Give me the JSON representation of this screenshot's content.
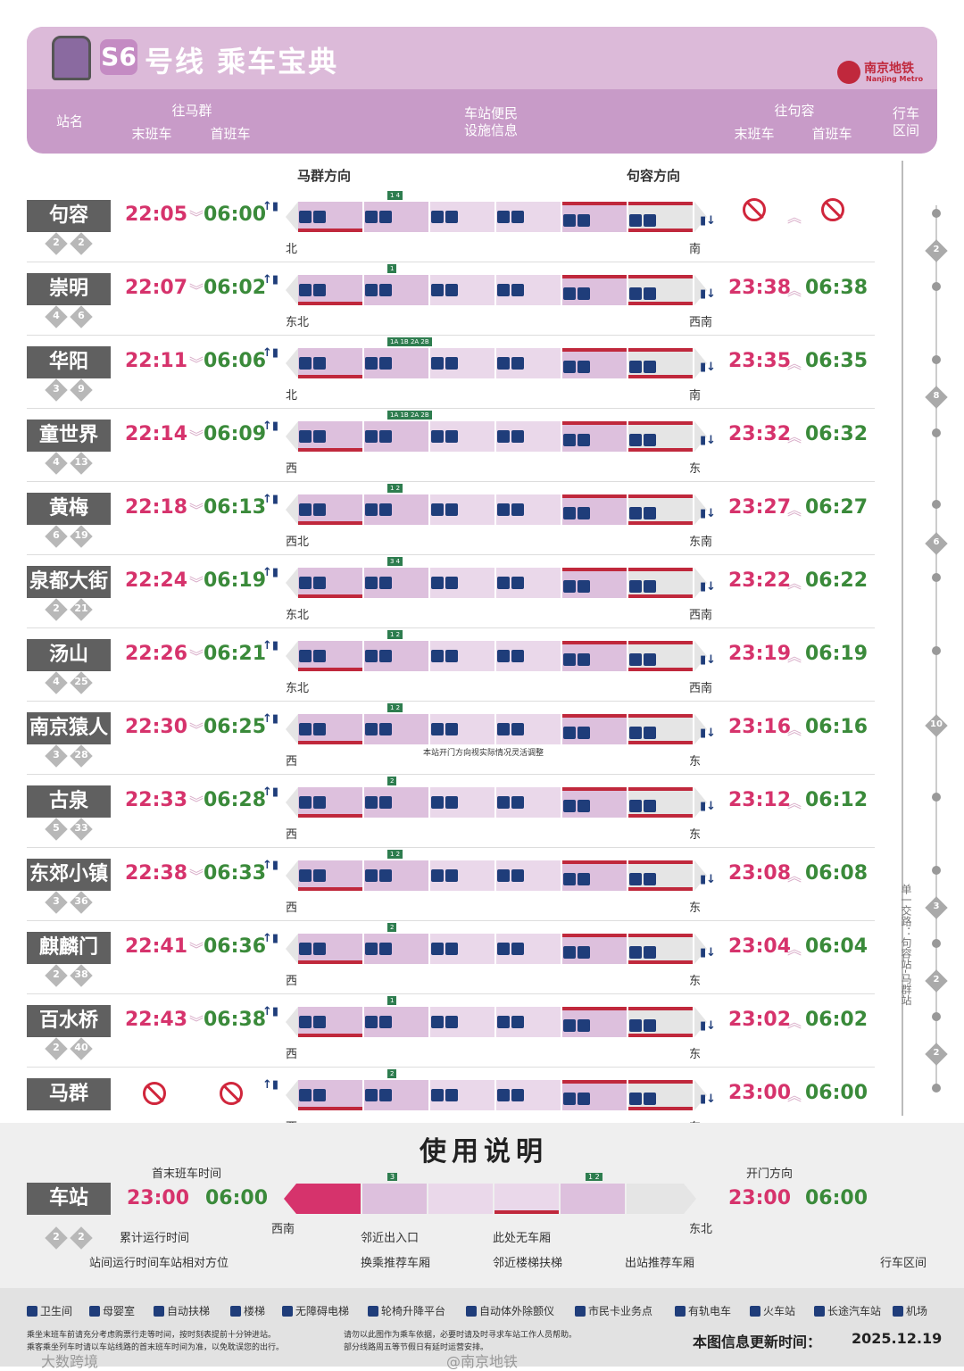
{
  "header": {
    "line": "S6",
    "title": "号线 乘车宝典",
    "logo_cn": "南京地铁",
    "logo_en": "Nanjing Metro",
    "col_station": "站名",
    "col_to_maqun": "往马群",
    "col_last": "末班车",
    "col_first": "首班车",
    "col_facilities_1": "车站便民",
    "col_facilities_2": "设施信息",
    "col_to_jurong": "往句容",
    "col_last_r": "末班车",
    "col_first_r": "首班车",
    "col_range_1": "行车",
    "col_range_2": "区间"
  },
  "directions": {
    "left": "马群方向",
    "right": "句容方向"
  },
  "stations": [
    {
      "name": "句容",
      "d1": "2",
      "d2": "2",
      "last": "22:05",
      "first": "06:00",
      "rlast": "",
      "rfirst": "",
      "dirL": "北",
      "dirR": "南",
      "forbidR": true,
      "exits": "1 4"
    },
    {
      "name": "崇明",
      "d1": "4",
      "d2": "6",
      "last": "22:07",
      "first": "06:02",
      "rlast": "23:38",
      "rfirst": "06:38",
      "dirL": "东北",
      "dirR": "西南",
      "exits": "1"
    },
    {
      "name": "华阳",
      "d1": "3",
      "d2": "9",
      "last": "22:11",
      "first": "06:06",
      "rlast": "23:35",
      "rfirst": "06:35",
      "dirL": "北",
      "dirR": "南",
      "exits": "1A 1B 2A 2B"
    },
    {
      "name": "童世界",
      "d1": "4",
      "d2": "13",
      "last": "22:14",
      "first": "06:09",
      "rlast": "23:32",
      "rfirst": "06:32",
      "dirL": "西",
      "dirR": "东",
      "exits": "1A 1B 2A 2B"
    },
    {
      "name": "黄梅",
      "d1": "6",
      "d2": "19",
      "last": "22:18",
      "first": "06:13",
      "rlast": "23:27",
      "rfirst": "06:27",
      "dirL": "西北",
      "dirR": "东南",
      "exits": "1 2"
    },
    {
      "name": "泉都大街",
      "d1": "2",
      "d2": "21",
      "last": "22:24",
      "first": "06:19",
      "rlast": "23:22",
      "rfirst": "06:22",
      "dirL": "东北",
      "dirR": "西南",
      "exits": "3 4"
    },
    {
      "name": "汤山",
      "d1": "4",
      "d2": "25",
      "last": "22:26",
      "first": "06:21",
      "rlast": "23:19",
      "rfirst": "06:19",
      "dirL": "东北",
      "dirR": "西南",
      "exits": "1 2"
    },
    {
      "name": "南京猿人洞",
      "d1": "3",
      "d2": "28",
      "last": "22:30",
      "first": "06:25",
      "rlast": "23:16",
      "rfirst": "06:16",
      "dirL": "西",
      "dirR": "东",
      "exits": "1 2",
      "note": "本站开门方向视实际情况灵活调整"
    },
    {
      "name": "古泉",
      "d1": "5",
      "d2": "33",
      "last": "22:33",
      "first": "06:28",
      "rlast": "23:12",
      "rfirst": "06:12",
      "dirL": "西",
      "dirR": "东",
      "exits": "2"
    },
    {
      "name": "东郊小镇",
      "d1": "3",
      "d2": "36",
      "last": "22:38",
      "first": "06:33",
      "rlast": "23:08",
      "rfirst": "06:08",
      "dirL": "西",
      "dirR": "东",
      "exits": "1 2"
    },
    {
      "name": "麒麟门",
      "d1": "2",
      "d2": "38",
      "last": "22:41",
      "first": "06:36",
      "rlast": "23:04",
      "rfirst": "06:04",
      "dirL": "西",
      "dirR": "东",
      "exits": "2"
    },
    {
      "name": "百水桥",
      "d1": "2",
      "d2": "40",
      "last": "22:43",
      "first": "06:38",
      "rlast": "23:02",
      "rfirst": "06:02",
      "dirL": "西",
      "dirR": "东",
      "exits": "1"
    },
    {
      "name": "马群",
      "d1": "",
      "d2": "",
      "last": "",
      "first": "",
      "rlast": "23:00",
      "rfirst": "06:00",
      "dirL": "西",
      "dirR": "东",
      "forbidL": true,
      "exits": "2"
    }
  ],
  "rail": {
    "label": "单一交路：句容站-马群站",
    "nums": [
      "2",
      "8",
      "6",
      "10",
      "3",
      "2",
      "2"
    ]
  },
  "guide": {
    "title": "使用说明",
    "station": "车站",
    "first_last_label": "首末班车时间",
    "last": "23:00",
    "first": "06:00",
    "rlast": "23:00",
    "rfirst": "06:00",
    "door": "开门方向",
    "dirL": "西南",
    "dirR": "东北",
    "d1": "2",
    "d2": "2",
    "cum_time": "累计运行时间",
    "between": "站间运行时间车站相对方位",
    "nearby_exit": "邻近出入口",
    "transfer_car": "换乘推荐车厢",
    "no_car": "此处无车厢",
    "nearby_stair": "邻近楼梯扶梯",
    "exit_car": "出站推荐车厢",
    "range": "行车区间",
    "exit_num": "3",
    "exit_num2": "1 2"
  },
  "legend": [
    "卫生间",
    "母婴室",
    "自动扶梯",
    "楼梯",
    "无障碍电梯",
    "轮椅升降平台",
    "自动体外除颤仪",
    "市民卡业务点",
    "有轨电车",
    "火车站",
    "长途汽车站",
    "机场"
  ],
  "notes": {
    "n1": "乘坐末班车前请充分考虑购票行走等时间，按时刻表提前十分钟进站。",
    "n2": "乘客乘坐列车时请以车站线路的首末班车时间为准，以免耽误您的出行。",
    "n3": "请勿以此图作为乘车依据，必要时请及时寻求车站工作人员帮助。",
    "n4": "部分线路周五等节假日有延时运营安排。",
    "update_label": "本图信息更新时间：",
    "update_date": "2025.12.19",
    "weibo": "@南京地铁",
    "corner": "大数跨境"
  }
}
